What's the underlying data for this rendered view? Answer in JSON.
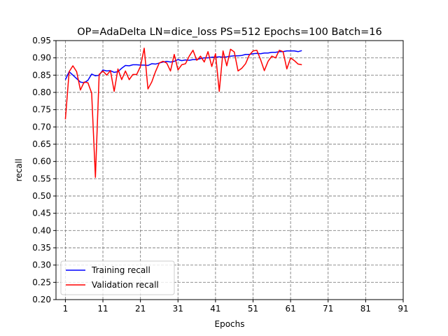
{
  "chart_data": {
    "type": "line",
    "title": "OP=AdaDelta LN=dice_loss PS=512 Epochs=100 Batch=16",
    "xlabel": "Epochs",
    "ylabel": "recall",
    "xlim": [
      -1.5,
      91
    ],
    "ylim": [
      0.2,
      0.95
    ],
    "x_ticks": [
      "1",
      "11",
      "21",
      "31",
      "41",
      "51",
      "61",
      "71",
      "81",
      "91"
    ],
    "y_ticks": [
      "0.20",
      "0.25",
      "0.30",
      "0.35",
      "0.40",
      "0.45",
      "0.50",
      "0.55",
      "0.60",
      "0.65",
      "0.70",
      "0.75",
      "0.80",
      "0.85",
      "0.90",
      "0.95"
    ],
    "grid": true,
    "legend_position": "lower-left",
    "series": [
      {
        "name": "Training recall",
        "color": "#0000ff",
        "x": [
          1,
          2,
          3,
          4,
          5,
          6,
          7,
          8,
          9,
          10,
          11,
          12,
          13,
          14,
          15,
          16,
          17,
          18,
          19,
          20,
          21,
          22,
          23,
          24,
          25,
          26,
          27,
          28,
          29,
          30,
          31,
          32,
          33,
          34,
          35,
          36,
          37,
          38,
          39,
          40,
          41,
          42,
          43,
          44,
          45,
          46,
          47,
          48,
          49,
          50,
          51,
          52,
          53,
          54,
          55,
          56,
          57,
          58,
          59,
          60,
          61,
          62,
          63,
          64
        ],
        "values": [
          0.837,
          0.86,
          0.85,
          0.84,
          0.83,
          0.828,
          0.835,
          0.853,
          0.848,
          0.85,
          0.865,
          0.862,
          0.863,
          0.858,
          0.86,
          0.87,
          0.878,
          0.877,
          0.88,
          0.88,
          0.879,
          0.879,
          0.878,
          0.883,
          0.882,
          0.885,
          0.888,
          0.89,
          0.888,
          0.89,
          0.895,
          0.892,
          0.894,
          0.893,
          0.895,
          0.895,
          0.898,
          0.9,
          0.9,
          0.902,
          0.902,
          0.903,
          0.902,
          0.903,
          0.905,
          0.906,
          0.906,
          0.907,
          0.91,
          0.91,
          0.912,
          0.913,
          0.912,
          0.914,
          0.914,
          0.916,
          0.916,
          0.918,
          0.918,
          0.92,
          0.92,
          0.92,
          0.918,
          0.921
        ]
      },
      {
        "name": "Validation recall",
        "color": "#ff0000",
        "x": [
          1,
          2,
          3,
          4,
          5,
          6,
          7,
          8,
          9,
          10,
          11,
          12,
          13,
          14,
          15,
          16,
          17,
          18,
          19,
          20,
          21,
          22,
          23,
          24,
          25,
          26,
          27,
          28,
          29,
          30,
          31,
          32,
          33,
          34,
          35,
          36,
          37,
          38,
          39,
          40,
          41,
          42,
          43,
          44,
          45,
          46,
          47,
          48,
          49,
          50,
          51,
          52,
          53,
          54,
          55,
          56,
          57,
          58,
          59,
          60,
          61,
          62,
          63,
          64
        ],
        "values": [
          0.722,
          0.86,
          0.877,
          0.86,
          0.807,
          0.83,
          0.828,
          0.798,
          0.554,
          0.852,
          0.862,
          0.85,
          0.863,
          0.803,
          0.868,
          0.837,
          0.862,
          0.837,
          0.852,
          0.852,
          0.875,
          0.928,
          0.81,
          0.83,
          0.86,
          0.885,
          0.89,
          0.885,
          0.862,
          0.91,
          0.865,
          0.88,
          0.883,
          0.905,
          0.922,
          0.893,
          0.905,
          0.888,
          0.918,
          0.875,
          0.912,
          0.803,
          0.92,
          0.877,
          0.925,
          0.917,
          0.862,
          0.87,
          0.883,
          0.908,
          0.92,
          0.922,
          0.895,
          0.863,
          0.89,
          0.905,
          0.9,
          0.922,
          0.918,
          0.868,
          0.9,
          0.892,
          0.882,
          0.88
        ]
      }
    ]
  }
}
